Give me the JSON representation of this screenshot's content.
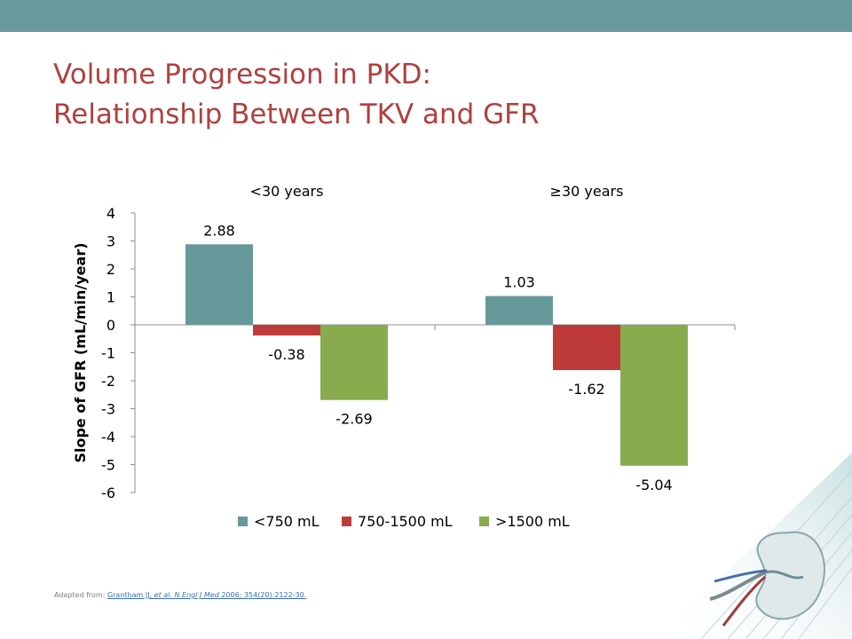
{
  "header": {
    "bar_color": "#6a9a9c"
  },
  "slide": {
    "title_line1": "Volume Progression in PKD:",
    "title_line2": "Relationship Between TKV and GFR",
    "title_color": "#b0403f"
  },
  "source": {
    "prefix": "Adapted from: ",
    "author": "Grantham JJ, ",
    "etal": "et al.",
    "journal": "N Engl J Med",
    "rest": " 2006; 354(20):2122-30.",
    "link_color": "#3a6fb0"
  },
  "decoration": {
    "icon": "kidney-illustration-icon"
  },
  "chart_data": {
    "type": "bar",
    "title": "",
    "categories": [
      "<30 years",
      "≥30 years"
    ],
    "series": [
      {
        "name": "<750 mL",
        "color": "#67989a",
        "values": [
          2.88,
          1.03
        ],
        "labels": [
          "2.88",
          "1.03"
        ]
      },
      {
        "name": "750-1500 mL",
        "color": "#bf3b3a",
        "values": [
          -0.38,
          -1.62
        ],
        "labels": [
          "-0.38",
          "-1.62"
        ]
      },
      {
        "name": ">1500 mL",
        "color": "#88ab4e",
        "values": [
          -2.69,
          -5.04
        ],
        "labels": [
          "-2.69",
          "-5.04"
        ]
      }
    ],
    "xlabel": "",
    "ylabel": "Slope of GFR (mL/min/year)",
    "ylim": [
      -6,
      4
    ],
    "yticks": [
      "4",
      "3",
      "2",
      "1",
      "0",
      "-1",
      "-2",
      "-3",
      "-4",
      "-5",
      "-6"
    ],
    "grid": false,
    "legend": "bottom"
  }
}
